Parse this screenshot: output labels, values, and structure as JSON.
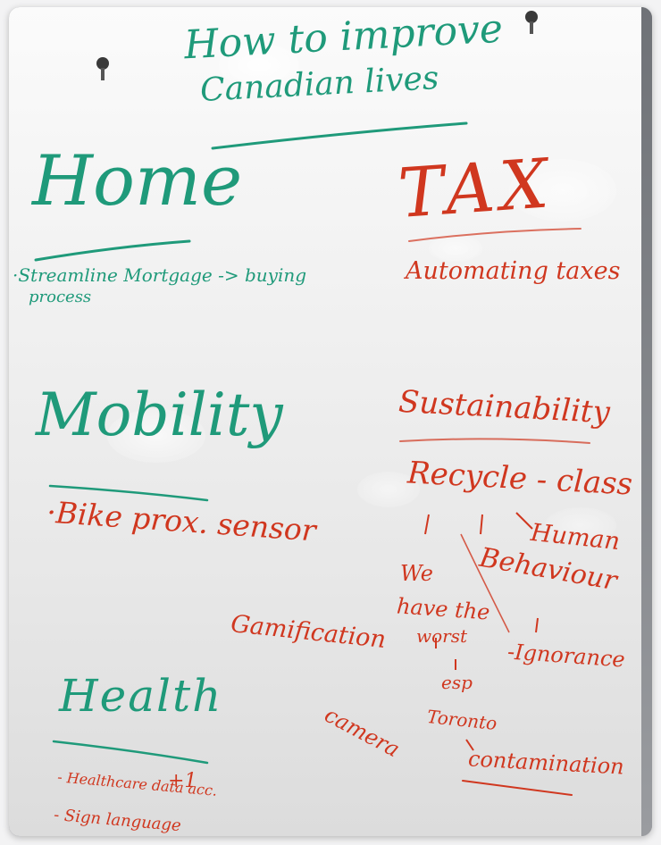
{
  "board": {
    "title_line1": "How to improve",
    "title_line2": "Canadian lives",
    "sections": {
      "home": {
        "heading": "Home",
        "item_line1": "·Streamline Mortgage -> buying",
        "item_line2": "process"
      },
      "tax": {
        "heading": "TAX",
        "item": "Automating taxes"
      },
      "mobility": {
        "heading": "Mobility",
        "item": "·Bike prox. sensor"
      },
      "sustainability": {
        "heading": "Sustainability",
        "recycle": "Recycle - class",
        "human": "Human",
        "behaviour": "Behaviour",
        "we": "We",
        "have_the": "have the",
        "worst": "worst",
        "esp": "esp",
        "toronto": "Toronto",
        "ignorance": "-Ignorance",
        "contamination": "contamination"
      },
      "misc": {
        "gamification": "Gamification",
        "camera": "camera"
      },
      "health": {
        "heading": "Health",
        "item1": "- Healthcare data acc.",
        "plus_one": "+1",
        "item2": "- Sign language"
      }
    },
    "colors": {
      "green_marker": "#1f9a7a",
      "red_marker": "#d0371f",
      "board": "#f1f1f1"
    }
  }
}
